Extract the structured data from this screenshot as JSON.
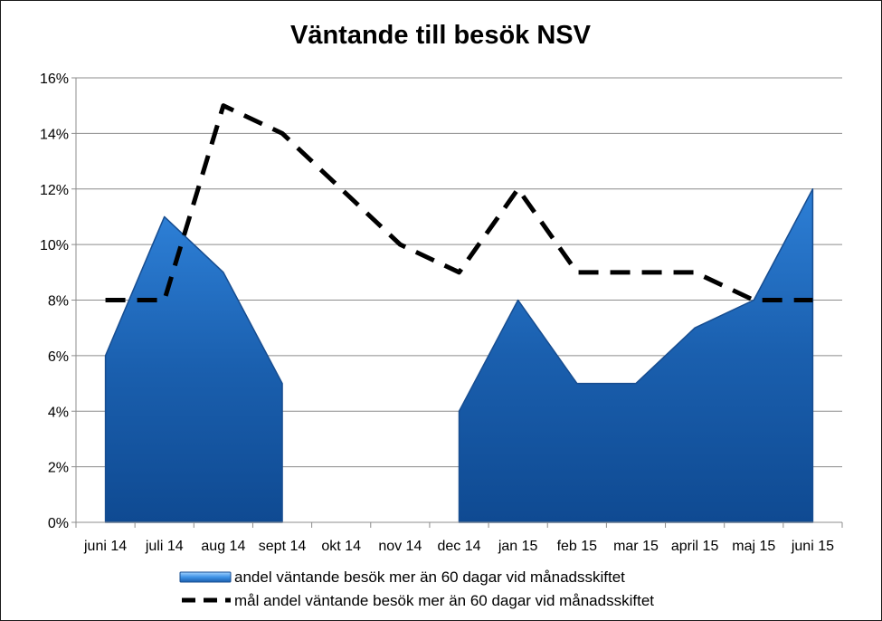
{
  "chart_data": {
    "type": "area",
    "title": "Väntande till besök NSV",
    "xlabel": "",
    "ylabel": "",
    "categories": [
      "juni 14",
      "juli 14",
      "aug 14",
      "sept 14",
      "okt 14",
      "nov 14",
      "dec 14",
      "jan 15",
      "feb 15",
      "mar 15",
      "april 15",
      "maj 15",
      "juni 15"
    ],
    "y_ticks": [
      "0%",
      "2%",
      "4%",
      "6%",
      "8%",
      "10%",
      "12%",
      "14%",
      "16%"
    ],
    "ylim": [
      0,
      16
    ],
    "grid": true,
    "legend_position": "bottom",
    "series": [
      {
        "name": "andel väntande besök mer än 60 dagar vid månadsskiftet",
        "kind": "area",
        "color": "#1f63b4",
        "values": [
          6,
          11,
          9,
          5,
          null,
          null,
          4,
          8,
          5,
          5,
          7,
          8,
          12
        ]
      },
      {
        "name": "mål andel  väntande besök mer än 60 dagar vid månadsskiftet",
        "kind": "dashed-line",
        "color": "#000000",
        "values": [
          8,
          8,
          15,
          14,
          12,
          10,
          9,
          12,
          9,
          9,
          9,
          8,
          8
        ]
      }
    ]
  }
}
